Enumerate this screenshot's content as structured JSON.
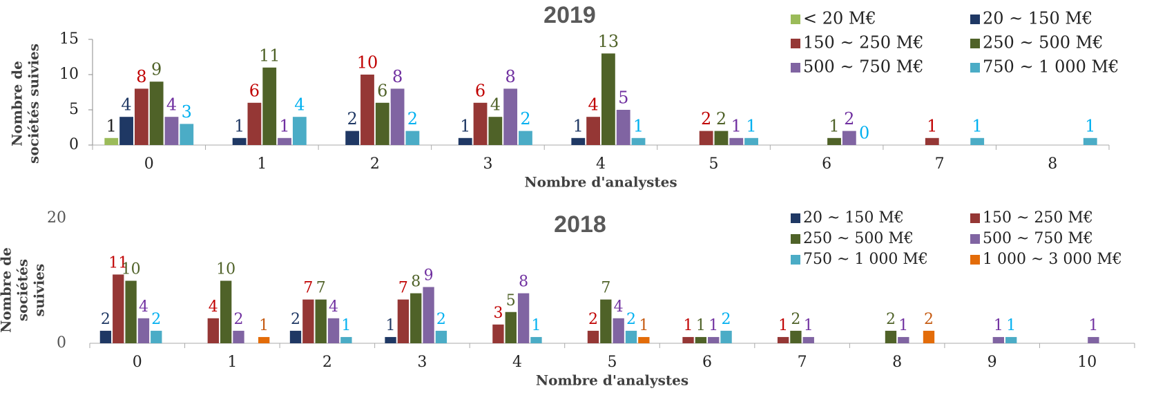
{
  "chart_data": [
    {
      "type": "bar",
      "title": "2019",
      "xlabel": "Nombre d'analystes",
      "ylabel": [
        "Nombre de",
        "sociétés suivies"
      ],
      "categories": [
        "0",
        "1",
        "2",
        "3",
        "4",
        "5",
        "6",
        "7",
        "8"
      ],
      "series": [
        {
          "name": "< 20 M€",
          "color": "#9bbb59",
          "label_color": "#1f1f1f",
          "values": [
            1,
            null,
            null,
            null,
            null,
            null,
            null,
            null,
            null
          ]
        },
        {
          "name": "20 ~ 150 M€",
          "color": "#1f3864",
          "label_color": "#1f3864",
          "values": [
            4,
            1,
            2,
            1,
            1,
            null,
            null,
            null,
            null
          ]
        },
        {
          "name": "150 ~ 250 M€",
          "color": "#953735",
          "label_color": "#c00000",
          "values": [
            8,
            6,
            10,
            6,
            4,
            2,
            null,
            1,
            null
          ]
        },
        {
          "name": "250 ~ 500 M€",
          "color": "#4f6228",
          "label_color": "#4f6228",
          "values": [
            9,
            11,
            6,
            4,
            13,
            2,
            1,
            null,
            null
          ]
        },
        {
          "name": "500 ~ 750 M€",
          "color": "#8064a2",
          "label_color": "#7030a0",
          "values": [
            4,
            1,
            8,
            8,
            5,
            1,
            2,
            null,
            null
          ]
        },
        {
          "name": "750 ~ 1 000 M€",
          "color": "#4bacc6",
          "label_color": "#00b0f0",
          "values": [
            3,
            4,
            2,
            2,
            1,
            1,
            0,
            1,
            1
          ]
        }
      ],
      "ylim": [
        0,
        15
      ],
      "yticks": [
        0,
        5,
        10,
        15
      ],
      "legend": "upper right"
    },
    {
      "type": "bar",
      "title": "2018",
      "xlabel": "Nombre d'analystes",
      "ylabel": [
        "Nombre de",
        "sociétés",
        "suivies"
      ],
      "categories": [
        "0",
        "1",
        "2",
        "3",
        "4",
        "5",
        "6",
        "7",
        "8",
        "9",
        "10"
      ],
      "series": [
        {
          "name": "20 ~ 150 M€",
          "color": "#1f3864",
          "label_color": "#1f3864",
          "values": [
            2,
            null,
            2,
            1,
            null,
            null,
            null,
            null,
            null,
            null,
            null
          ]
        },
        {
          "name": "150 ~ 250 M€",
          "color": "#953735",
          "label_color": "#c00000",
          "values": [
            11,
            4,
            7,
            7,
            3,
            2,
            1,
            1,
            null,
            null,
            null
          ]
        },
        {
          "name": "250 ~ 500 M€",
          "color": "#4f6228",
          "label_color": "#4f6228",
          "values": [
            10,
            10,
            7,
            8,
            5,
            7,
            1,
            2,
            2,
            null,
            null
          ]
        },
        {
          "name": "500 ~ 750 M€",
          "color": "#8064a2",
          "label_color": "#7030a0",
          "values": [
            4,
            2,
            4,
            9,
            8,
            4,
            1,
            1,
            1,
            1,
            1
          ]
        },
        {
          "name": "750 ~ 1 000 M€",
          "color": "#4bacc6",
          "label_color": "#00b0f0",
          "values": [
            2,
            null,
            1,
            2,
            1,
            2,
            2,
            null,
            null,
            1,
            null
          ]
        },
        {
          "name": "1 000 ~ 3 000 M€",
          "color": "#e36c09",
          "label_color": "#c55a11",
          "values": [
            null,
            1,
            null,
            null,
            null,
            1,
            null,
            null,
            2,
            null,
            null
          ]
        }
      ],
      "ylim": [
        0,
        20
      ],
      "yticks": [
        0,
        20
      ],
      "legend": "upper right"
    }
  ]
}
